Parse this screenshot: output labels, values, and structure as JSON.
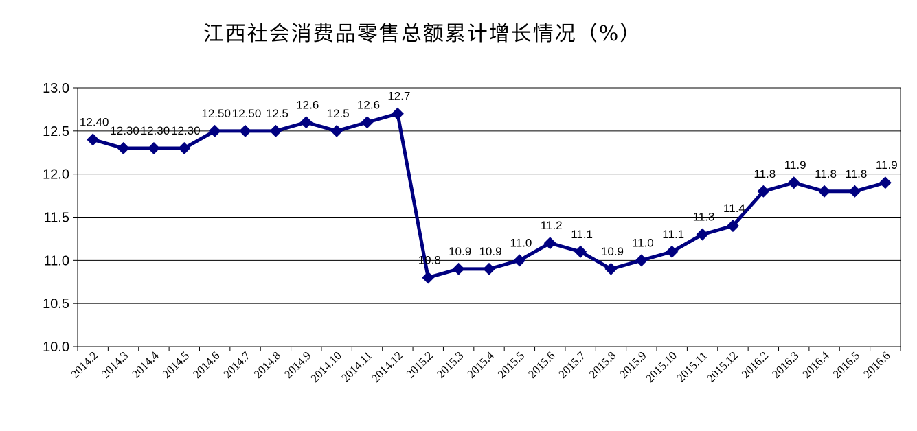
{
  "chart_data": {
    "type": "line",
    "title": "江西社会消费品零售总额累计增长情况（%）",
    "xlabel": "",
    "ylabel": "",
    "ylim": [
      10.0,
      13.0
    ],
    "y_ticks": [
      "10.0",
      "10.5",
      "11.0",
      "11.5",
      "12.0",
      "12.5",
      "13.0"
    ],
    "grid": true,
    "legend": "none",
    "line_color": "#000080",
    "categories": [
      "2014.2",
      "2014.3",
      "2014.4",
      "2014.5",
      "2014.6",
      "2014.7",
      "2014.8",
      "2014.9",
      "2014.10",
      "2014.11",
      "2014.12",
      "2015.2",
      "2015.3",
      "2015.4",
      "2015.5",
      "2015.6",
      "2015.7",
      "2015.8",
      "2015.9",
      "2015.10",
      "2015.11",
      "2015.12",
      "2016.2",
      "2016.3",
      "2016.4",
      "2016.5",
      "2016.6"
    ],
    "values": [
      12.4,
      12.3,
      12.3,
      12.3,
      12.5,
      12.5,
      12.5,
      12.6,
      12.5,
      12.6,
      12.7,
      10.8,
      10.9,
      10.9,
      11.0,
      11.2,
      11.1,
      10.9,
      11.0,
      11.1,
      11.3,
      11.4,
      11.8,
      11.9,
      11.8,
      11.8,
      11.9
    ],
    "data_labels": [
      "12.40",
      "12.30",
      "12.30",
      "12.30",
      "12.50",
      "12.50",
      "12.5",
      "12.6",
      "12.5",
      "12.6",
      "12.7",
      "10.8",
      "10.9",
      "10.9",
      "11.0",
      "11.2",
      "11.1",
      "10.9",
      "11.0",
      "11.1",
      "11.3",
      "11.4",
      "11.8",
      "11.9",
      "11.8",
      "11.8",
      "11.9"
    ]
  }
}
